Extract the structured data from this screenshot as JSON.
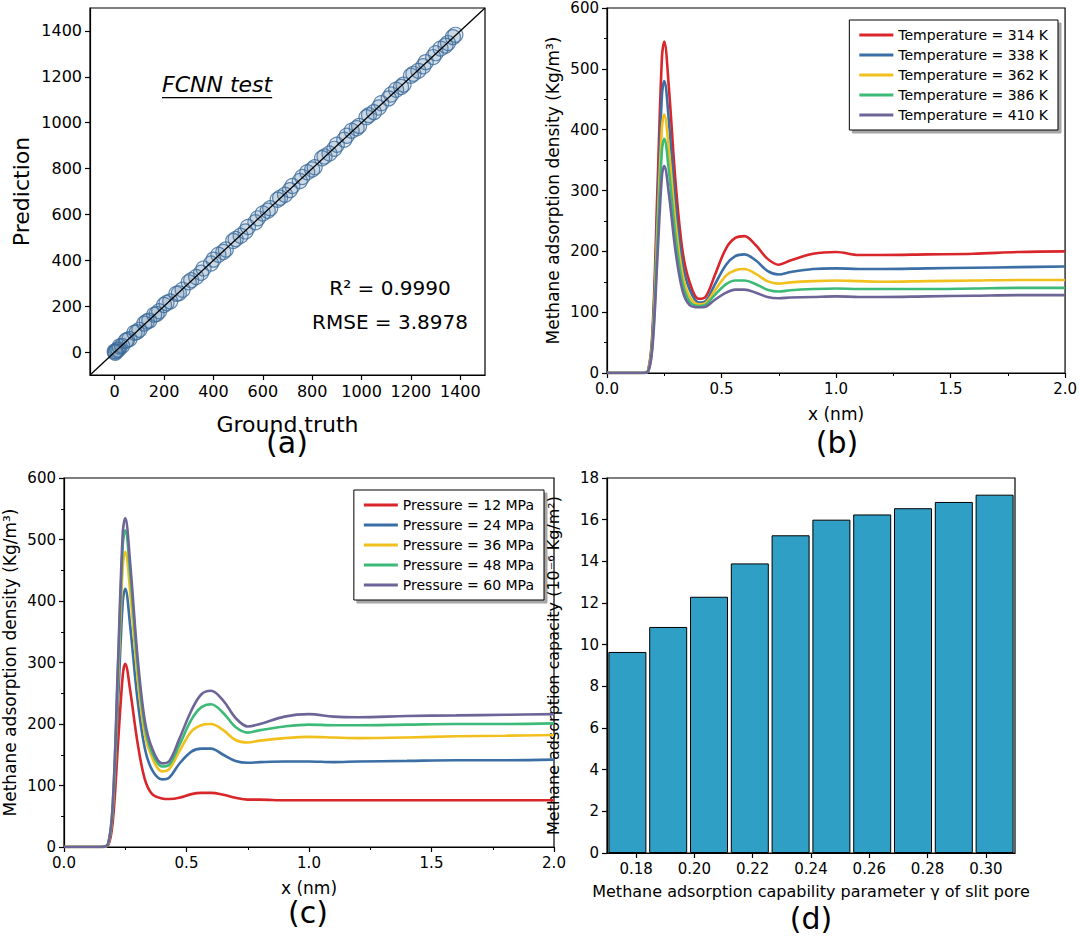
{
  "chart_data": [
    {
      "type": "scatter",
      "panel_label": "(a)",
      "x_label": "Ground truth",
      "y_label": "Prediction",
      "annotations": [
        "FCNN test",
        "R² = 0.9990",
        "RMSE = 3.8978"
      ],
      "xlim": [
        -100,
        1500
      ],
      "xticks": [
        0,
        200,
        400,
        600,
        800,
        1000,
        1200,
        1400
      ],
      "ylim": [
        -100,
        1500
      ],
      "yticks": [
        0,
        200,
        400,
        600,
        800,
        1000,
        1200,
        1400
      ],
      "grid": false,
      "series": [
        {
          "type": "scatter",
          "color": "#3d6c9b",
          "marker": "circle_open",
          "x": [
            0,
            5,
            10,
            20,
            30,
            45,
            60,
            80,
            100,
            120,
            140,
            160,
            180,
            200,
            225,
            250,
            275,
            300,
            330,
            360,
            390,
            420,
            450,
            480,
            510,
            540,
            570,
            600,
            630,
            660,
            690,
            720,
            750,
            780,
            810,
            840,
            870,
            900,
            930,
            960,
            990,
            1020,
            1050,
            1080,
            1110,
            1140,
            1170,
            1200,
            1230,
            1260,
            1290,
            1320,
            1350,
            1380,
            15,
            50,
            90,
            130,
            170,
            210,
            260,
            310,
            350,
            400,
            440,
            490,
            530,
            580,
            620,
            670,
            710,
            760,
            800,
            850,
            890,
            940,
            980,
            1030,
            1070,
            1120,
            1160,
            1210,
            1250,
            1300,
            1340,
            1370,
            2
          ],
          "values": [
            2,
            3,
            8,
            24,
            27,
            48,
            57,
            84,
            97,
            124,
            137,
            163,
            178,
            205,
            221,
            254,
            272,
            304,
            327,
            364,
            386,
            424,
            447,
            484,
            507,
            545,
            566,
            604,
            627,
            664,
            686,
            724,
            746,
            784,
            806,
            845,
            866,
            904,
            926,
            965,
            986,
            1024,
            1046,
            1085,
            1106,
            1144,
            1166,
            1205,
            1226,
            1264,
            1286,
            1323,
            1347,
            1383,
            11,
            53,
            87,
            133,
            166,
            214,
            256,
            313,
            346,
            403,
            436,
            493,
            526,
            583,
            616,
            673,
            706,
            763,
            796,
            853,
            886,
            943,
            976,
            1033,
            1066,
            1123,
            1156,
            1213,
            1246,
            1303,
            1336,
            1373,
            -3
          ]
        },
        {
          "type": "line",
          "color": "#000000",
          "line_style": "solid",
          "x": [
            -100,
            1500
          ],
          "values": [
            -100,
            1500
          ]
        }
      ]
    },
    {
      "type": "line",
      "panel_label": "(b)",
      "x_label": "x (nm)",
      "y_label": "Methane adsorption density (Kg/m³)",
      "xlim": [
        0,
        2
      ],
      "xticks": [
        {
          "value": 0,
          "label": "0.0"
        },
        0.5,
        {
          "value": 1,
          "label": "1.0"
        },
        1.5,
        {
          "value": 2,
          "label": "2.0"
        }
      ],
      "ylim": [
        0,
        600
      ],
      "yticks": [
        0,
        100,
        200,
        300,
        400,
        500,
        600
      ],
      "grid": false,
      "legend": "upper right",
      "x": [
        0,
        0.1,
        0.15,
        0.18,
        0.2,
        0.22,
        0.24,
        0.25,
        0.27,
        0.3,
        0.33,
        0.36,
        0.4,
        0.43,
        0.47,
        0.52,
        0.56,
        0.6,
        0.65,
        0.7,
        0.75,
        0.8,
        0.9,
        1.0,
        1.1,
        1.2,
        1.4,
        1.6,
        1.8,
        2.0
      ],
      "series": [
        {
          "name": "Temperature = 314 K",
          "color": "#d9262b",
          "values": [
            0,
            0,
            0,
            5,
            80,
            300,
            520,
            545,
            470,
            310,
            200,
            150,
            122,
            125,
            160,
            205,
            222,
            225,
            210,
            188,
            178,
            185,
            196,
            199,
            194,
            194,
            195,
            196,
            199,
            200
          ]
        },
        {
          "name": "Temperature = 338 K",
          "color": "#3b6ea5",
          "values": [
            0,
            0,
            0,
            4,
            70,
            265,
            458,
            480,
            415,
            275,
            180,
            138,
            116,
            118,
            145,
            178,
            192,
            195,
            185,
            168,
            162,
            166,
            171,
            172,
            171,
            171,
            172,
            173,
            174,
            175
          ]
        },
        {
          "name": "Temperature = 362 K",
          "color": "#f2c01c",
          "values": [
            0,
            0,
            0,
            4,
            62,
            235,
            405,
            425,
            368,
            245,
            162,
            126,
            113,
            115,
            135,
            160,
            169,
            171,
            163,
            151,
            147,
            149,
            151,
            152,
            151,
            150,
            151,
            152,
            153,
            153
          ]
        },
        {
          "name": "Temperature = 386 K",
          "color": "#3dba78",
          "values": [
            0,
            0,
            0,
            3,
            56,
            212,
            367,
            385,
            333,
            222,
            148,
            118,
            110,
            112,
            128,
            146,
            152,
            152,
            146,
            137,
            134,
            136,
            138,
            139,
            138,
            138,
            138,
            139,
            140,
            140
          ]
        },
        {
          "name": "Temperature = 410 K",
          "color": "#6d6497",
          "values": [
            0,
            0,
            0,
            3,
            50,
            188,
            325,
            340,
            295,
            198,
            135,
            112,
            108,
            109,
            120,
            132,
            137,
            137,
            132,
            125,
            123,
            124,
            125,
            126,
            125,
            125,
            126,
            127,
            128,
            128
          ]
        }
      ]
    },
    {
      "type": "line",
      "panel_label": "(c)",
      "x_label": "x (nm)",
      "y_label": "Methane adsorption density (Kg/m³)",
      "xlim": [
        0,
        2
      ],
      "xticks": [
        {
          "value": 0,
          "label": "0.0"
        },
        0.5,
        {
          "value": 1,
          "label": "1.0"
        },
        1.5,
        {
          "value": 2,
          "label": "2.0"
        }
      ],
      "ylim": [
        0,
        600
      ],
      "yticks": [
        0,
        100,
        200,
        300,
        400,
        500,
        600
      ],
      "grid": false,
      "legend": "upper right",
      "x": [
        0,
        0.1,
        0.15,
        0.18,
        0.2,
        0.22,
        0.24,
        0.25,
        0.27,
        0.3,
        0.33,
        0.36,
        0.4,
        0.43,
        0.47,
        0.52,
        0.56,
        0.6,
        0.65,
        0.7,
        0.75,
        0.8,
        0.9,
        1.0,
        1.1,
        1.2,
        1.4,
        1.6,
        1.8,
        2.0
      ],
      "series": [
        {
          "name": "Pressure = 12 MPa",
          "color": "#d9262b",
          "values": [
            0,
            0,
            0,
            3,
            45,
            165,
            280,
            298,
            255,
            170,
            110,
            86,
            79,
            78,
            80,
            86,
            88,
            88,
            85,
            80,
            77,
            77,
            76,
            76,
            76,
            76,
            76,
            76,
            76,
            76
          ]
        },
        {
          "name": "Pressure = 24 MPa",
          "color": "#3b6ea5",
          "values": [
            0,
            0,
            0,
            4,
            62,
            230,
            400,
            420,
            360,
            240,
            160,
            125,
            110,
            113,
            135,
            155,
            160,
            160,
            150,
            140,
            137,
            138,
            139,
            139,
            138,
            139,
            140,
            141,
            141,
            142
          ]
        },
        {
          "name": "Pressure = 36 MPa",
          "color": "#f2c01c",
          "values": [
            0,
            0,
            0,
            4,
            70,
            265,
            458,
            480,
            415,
            278,
            183,
            145,
            123,
            127,
            155,
            188,
            198,
            200,
            190,
            174,
            170,
            173,
            177,
            179,
            178,
            177,
            178,
            180,
            181,
            182
          ]
        },
        {
          "name": "Pressure = 48 MPa",
          "color": "#3dba78",
          "values": [
            0,
            0,
            0,
            5,
            76,
            285,
            492,
            515,
            445,
            298,
            196,
            153,
            131,
            134,
            165,
            207,
            227,
            232,
            218,
            195,
            186,
            190,
            196,
            199,
            198,
            198,
            199,
            200,
            200,
            201
          ]
        },
        {
          "name": "Pressure = 60 MPa",
          "color": "#6d6497",
          "values": [
            0,
            0,
            0,
            5,
            78,
            295,
            512,
            535,
            462,
            310,
            205,
            160,
            136,
            140,
            175,
            222,
            248,
            254,
            238,
            210,
            196,
            200,
            212,
            216,
            212,
            211,
            213,
            214,
            215,
            216
          ]
        }
      ]
    },
    {
      "type": "bar",
      "panel_label": "(d)",
      "x_label": "Methane adsorption capability parameter γ of slit pore",
      "y_label": "Methane adsorption capacity (10⁻⁶ Kg/m²)",
      "xlim": [
        0.17,
        0.31
      ],
      "xticks": [
        0.18,
        {
          "value": 0.2,
          "label": "0.20"
        },
        0.22,
        0.24,
        0.26,
        0.28,
        {
          "value": 0.3,
          "label": "0.30"
        }
      ],
      "ylim": [
        0,
        18
      ],
      "yticks": [
        0,
        2,
        4,
        6,
        8,
        10,
        12,
        14,
        16,
        18
      ],
      "grid": false,
      "color": "#2f9fc6",
      "x": [
        0.177,
        0.191,
        0.205,
        0.219,
        0.233,
        0.247,
        0.261,
        0.275,
        0.289,
        0.303
      ],
      "values": [
        9.65,
        10.85,
        12.3,
        13.9,
        15.25,
        16.0,
        16.25,
        16.55,
        16.85,
        17.2
      ]
    }
  ]
}
